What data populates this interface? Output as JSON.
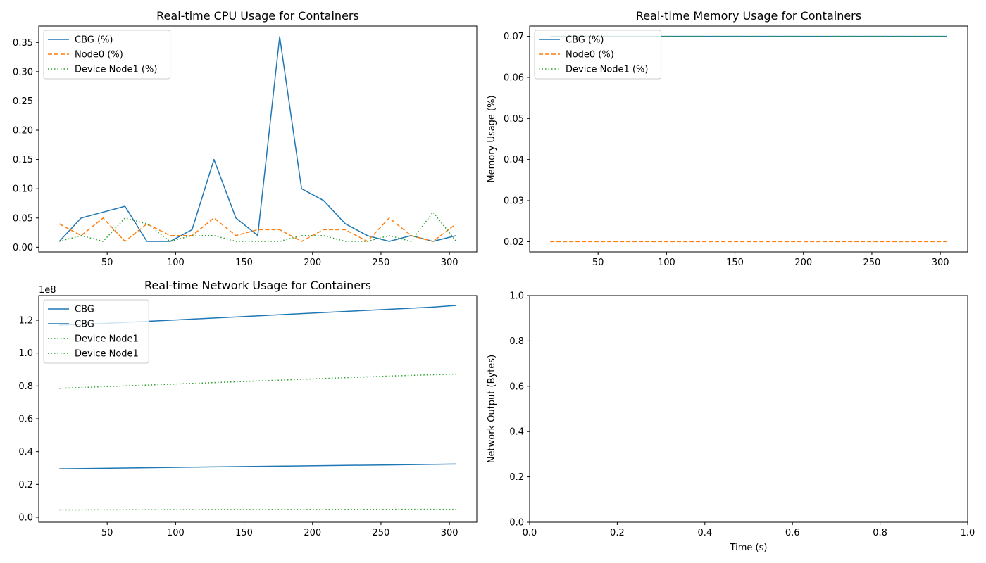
{
  "chart_data": [
    {
      "id": "cpu",
      "type": "line",
      "title": "Real-time CPU Usage for Containers",
      "xlabel": "",
      "ylabel": "",
      "xlim": [
        0,
        320
      ],
      "ylim": [
        -0.008,
        0.378
      ],
      "xticks": [
        50,
        100,
        150,
        200,
        250,
        300
      ],
      "yticks": [
        0.0,
        0.05,
        0.1,
        0.15,
        0.2,
        0.25,
        0.3,
        0.35
      ],
      "ytick_decimals": 2,
      "legend": "top-left",
      "series": [
        {
          "name": "CBG (%)",
          "color": "#1f77b4",
          "style": "solid",
          "x": [
            15,
            31,
            47,
            63,
            79,
            96,
            112,
            128,
            144,
            160,
            176,
            192,
            208,
            224,
            240,
            256,
            272,
            288,
            305
          ],
          "y": [
            0.01,
            0.05,
            0.06,
            0.07,
            0.01,
            0.01,
            0.03,
            0.15,
            0.05,
            0.02,
            0.36,
            0.1,
            0.08,
            0.04,
            0.02,
            0.01,
            0.02,
            0.01,
            0.02
          ]
        },
        {
          "name": "Node0 (%)",
          "color": "#ff7f0e",
          "style": "dashed",
          "x": [
            15,
            31,
            47,
            63,
            79,
            96,
            112,
            128,
            144,
            160,
            176,
            192,
            208,
            224,
            240,
            256,
            272,
            288,
            305
          ],
          "y": [
            0.04,
            0.02,
            0.05,
            0.01,
            0.04,
            0.02,
            0.02,
            0.05,
            0.02,
            0.03,
            0.03,
            0.01,
            0.03,
            0.03,
            0.01,
            0.05,
            0.02,
            0.01,
            0.04
          ]
        },
        {
          "name": "Device Node1 (%)",
          "color": "#2ca02c",
          "style": "dotted",
          "x": [
            15,
            31,
            47,
            63,
            79,
            96,
            112,
            128,
            144,
            160,
            176,
            192,
            208,
            224,
            240,
            256,
            272,
            288,
            305
          ],
          "y": [
            0.01,
            0.02,
            0.01,
            0.05,
            0.04,
            0.01,
            0.02,
            0.02,
            0.01,
            0.01,
            0.01,
            0.02,
            0.02,
            0.01,
            0.01,
            0.02,
            0.01,
            0.06,
            0.01
          ]
        }
      ]
    },
    {
      "id": "memory",
      "type": "line",
      "title": "Real-time Memory Usage for Containers",
      "xlabel": "",
      "ylabel": "Memory Usage (%)",
      "xlim": [
        0,
        320
      ],
      "ylim": [
        0.0175,
        0.0725
      ],
      "xticks": [
        50,
        100,
        150,
        200,
        250,
        300
      ],
      "yticks": [
        0.02,
        0.03,
        0.04,
        0.05,
        0.06,
        0.07
      ],
      "ytick_decimals": 2,
      "legend": "top-left",
      "series": [
        {
          "name": "CBG (%)",
          "color": "#1f77b4",
          "style": "solid",
          "x": [
            15,
            305
          ],
          "y": [
            0.07,
            0.07
          ]
        },
        {
          "name": "Node0 (%)",
          "color": "#ff7f0e",
          "style": "dashed",
          "x": [
            15,
            305
          ],
          "y": [
            0.02,
            0.02
          ]
        },
        {
          "name": "Device Node1 (%)",
          "color": "#2ca02c",
          "style": "dotted",
          "x": [
            15,
            305
          ],
          "y": [
            0.07,
            0.07
          ]
        }
      ]
    },
    {
      "id": "network",
      "type": "line",
      "title": "Real-time Network Usage for Containers",
      "xlabel": "",
      "ylabel": "",
      "xlim": [
        0,
        320
      ],
      "ylim": [
        -0.3,
        13.5
      ],
      "offset_text": "1e8",
      "xticks": [
        50,
        100,
        150,
        200,
        250,
        300
      ],
      "yticks": [
        0.0,
        0.2,
        0.4,
        0.6,
        0.8,
        1.0,
        1.2
      ],
      "ytick_decimals": 1,
      "ytick_scale": 10,
      "legend": "top-left",
      "series": [
        {
          "name": "CBG",
          "color": "#1f77b4",
          "style": "solid",
          "x": [
            15,
            47,
            96,
            144,
            192,
            240,
            288,
            305
          ],
          "y": [
            11.7,
            11.8,
            12.0,
            12.2,
            12.4,
            12.6,
            12.8,
            12.9
          ]
        },
        {
          "name": "CBG",
          "color": "#1f77b4",
          "style": "solid",
          "x": [
            15,
            63,
            128,
            192,
            256,
            305
          ],
          "y": [
            2.95,
            3.0,
            3.07,
            3.13,
            3.19,
            3.24
          ]
        },
        {
          "name": "Device Node1",
          "color": "#2ca02c",
          "style": "dotted",
          "x": [
            15,
            63,
            128,
            192,
            256,
            305
          ],
          "y": [
            7.85,
            8.0,
            8.2,
            8.4,
            8.6,
            8.72
          ]
        },
        {
          "name": "Device Node1",
          "color": "#2ca02c",
          "style": "dotted",
          "x": [
            15,
            128,
            305
          ],
          "y": [
            0.45,
            0.47,
            0.49
          ]
        }
      ]
    },
    {
      "id": "empty",
      "type": "line",
      "title": "",
      "xlabel": "Time (s)",
      "ylabel": "Network Output (Bytes)",
      "xlim": [
        0,
        1
      ],
      "ylim": [
        0,
        1
      ],
      "xticks": [
        0.0,
        0.2,
        0.4,
        0.6,
        0.8,
        1.0
      ],
      "yticks": [
        0.0,
        0.2,
        0.4,
        0.6,
        0.8,
        1.0
      ],
      "xtick_decimals": 1,
      "ytick_decimals": 1,
      "legend": "none",
      "series": []
    }
  ]
}
